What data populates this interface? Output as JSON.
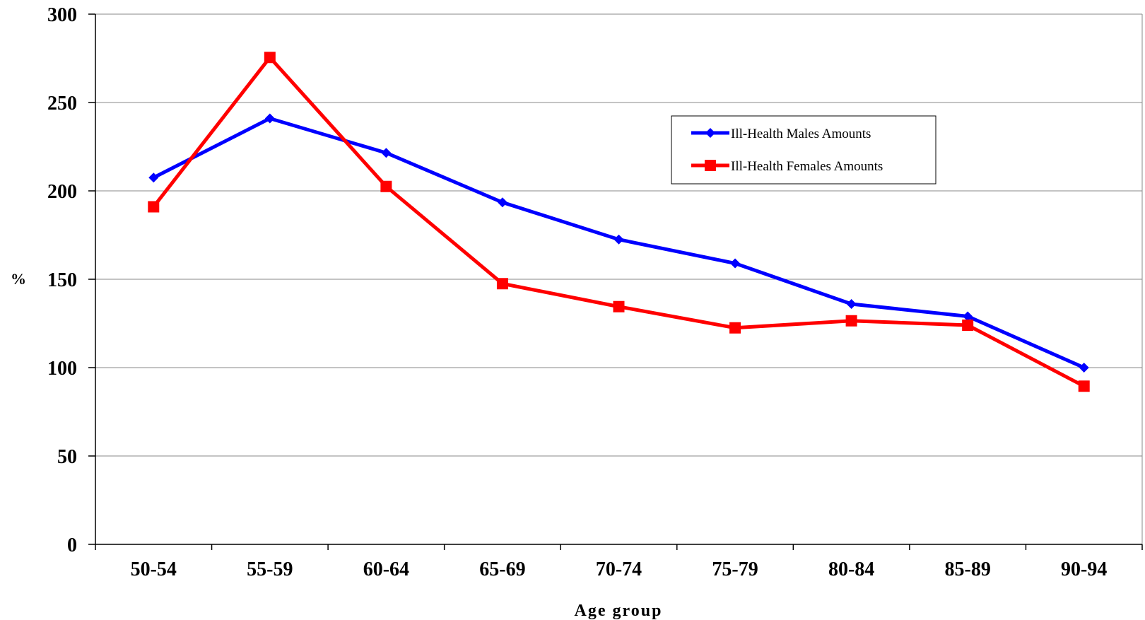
{
  "chart_data": {
    "type": "line",
    "title": "",
    "xlabel": "Age group",
    "ylabel": "%",
    "ylim": [
      0,
      300
    ],
    "yticks": [
      0,
      50,
      100,
      150,
      200,
      250,
      300
    ],
    "grid": true,
    "legend_position": "top-right",
    "categories": [
      "50-54",
      "55-59",
      "60-64",
      "65-69",
      "70-74",
      "75-79",
      "80-84",
      "85-89",
      "90-94"
    ],
    "series": [
      {
        "name": "Ill-Health Males Amounts",
        "color": "#0000ff",
        "marker": "diamond",
        "values": [
          207.5,
          241,
          221.5,
          193.5,
          172.5,
          159,
          136,
          129,
          100
        ]
      },
      {
        "name": "Ill-Health Females Amounts",
        "color": "#ff0000",
        "marker": "square",
        "values": [
          191,
          275.5,
          202.5,
          147.5,
          134.5,
          122.5,
          126.5,
          124,
          89.5
        ]
      }
    ]
  }
}
